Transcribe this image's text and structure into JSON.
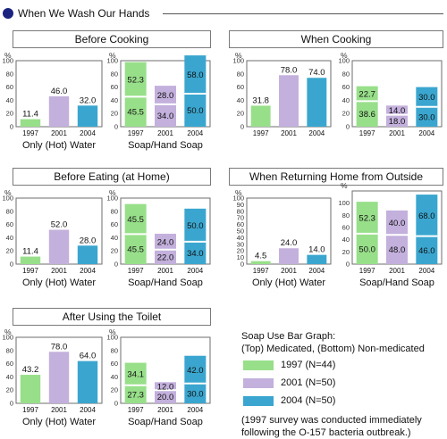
{
  "header": {
    "title": "When We Wash Our Hands"
  },
  "legend": {
    "heading": "Soap Use Bar Graph:",
    "subheading": "(Top) Medicated, (Bottom) Non-medicated",
    "items": [
      {
        "label": "1997  (N=44)",
        "color": "#98df8a"
      },
      {
        "label": "2001  (N=50)",
        "color": "#c3b0dc"
      },
      {
        "label": "2004  (N=50)",
        "color": "#3aa6cf"
      }
    ],
    "note_line1": "(1997 survey was conducted immediately",
    "note_line2": "following the O-157 bacteria outbreak.)"
  },
  "colors": {
    "1997": "#98df8a",
    "2001": "#c3b0dc",
    "2004": "#3aa6cf",
    "frame": "#6e6e6e",
    "axis_text": "#333333"
  },
  "chart_data": [
    {
      "panel": "Before Cooking",
      "water": {
        "type": "bar",
        "categories": [
          "1997",
          "2001",
          "2004"
        ],
        "values": [
          11.4,
          46.0,
          32.0
        ],
        "xlabel": "Only (Hot) Water",
        "ylabel": "%",
        "ylim": [
          0,
          100
        ],
        "yticks": [
          "0",
          "20",
          "40",
          "60",
          "80",
          "100"
        ]
      },
      "soap": {
        "type": "bar",
        "stacked": true,
        "categories": [
          "1997",
          "2001",
          "2004"
        ],
        "series": [
          {
            "name": "Non-medicated",
            "values": [
              45.5,
              34.0,
              50.0
            ]
          },
          {
            "name": "Medicated",
            "values": [
              52.3,
              28.0,
              58.0
            ]
          }
        ],
        "value_labels": {
          "bottom": [
            "45.5",
            "34.0",
            "50.0"
          ],
          "top": [
            "52.3",
            "28.0",
            "58.0"
          ]
        },
        "xlabel": "Soap/Hand Soap",
        "ylabel": "%",
        "ylim": [
          0,
          100
        ],
        "yticks": [
          "0",
          "20",
          "40",
          "60",
          "80",
          "100"
        ]
      }
    },
    {
      "panel": "When Cooking",
      "water": {
        "type": "bar",
        "categories": [
          "1997",
          "2001",
          "2004"
        ],
        "values": [
          31.8,
          78.0,
          74.0
        ],
        "xlabel": "",
        "ylabel": "%",
        "ylim": [
          0,
          100
        ],
        "yticks": [
          "0",
          "20",
          "40",
          "60",
          "80",
          "100"
        ]
      },
      "soap": {
        "type": "bar",
        "stacked": true,
        "categories": [
          "1997",
          "2001",
          "2004"
        ],
        "series": [
          {
            "name": "Non-medicated",
            "values": [
              38.6,
              18.0,
              30.0
            ]
          },
          {
            "name": "Medicated",
            "values": [
              22.7,
              14.0,
              30.0
            ]
          }
        ],
        "value_labels": {
          "bottom": [
            "38.6",
            "18.0",
            "30.0"
          ],
          "top": [
            "22.7",
            "14.0",
            "30.0"
          ]
        },
        "xlabel": "",
        "ylabel": "%",
        "ylim": [
          0,
          100
        ],
        "yticks": [
          "0",
          "20",
          "40",
          "60",
          "80",
          "100"
        ]
      }
    },
    {
      "panel": "Before Eating (at Home)",
      "water": {
        "type": "bar",
        "categories": [
          "1997",
          "2001",
          "2004"
        ],
        "values": [
          11.4,
          52.0,
          28.0
        ],
        "xlabel": "Only (Hot) Water",
        "ylabel": "%",
        "ylim": [
          0,
          100
        ],
        "yticks": [
          "0",
          "20",
          "40",
          "60",
          "80",
          "100"
        ]
      },
      "soap": {
        "type": "bar",
        "stacked": true,
        "categories": [
          "1997",
          "2001",
          "2004"
        ],
        "series": [
          {
            "name": "Non-medicated",
            "values": [
              45.5,
              22.0,
              34.0
            ]
          },
          {
            "name": "Medicated",
            "values": [
              45.5,
              24.0,
              50.0
            ]
          }
        ],
        "value_labels": {
          "bottom": [
            "45.5",
            "22.0",
            "34.0"
          ],
          "top": [
            "45.5",
            "24.0",
            "50.0"
          ]
        },
        "xlabel": "Soap/Hand Soap",
        "ylabel": "%",
        "ylim": [
          0,
          100
        ],
        "yticks": [
          "0",
          "20",
          "40",
          "60",
          "80",
          "100"
        ]
      }
    },
    {
      "panel": "When Returning Home from Outside",
      "water": {
        "type": "bar",
        "categories": [
          "1997",
          "2001",
          "2004"
        ],
        "values": [
          4.5,
          24.0,
          14.0
        ],
        "xlabel": "Only (Hot) Water",
        "ylabel": "%",
        "ylim": [
          0,
          100
        ],
        "yticks": [
          "0",
          "10",
          "20",
          "30",
          "40",
          "50",
          "60",
          "70",
          "80",
          "90",
          "100"
        ]
      },
      "soap": {
        "type": "bar",
        "stacked": true,
        "categories": [
          "1997",
          "2001",
          "2004"
        ],
        "series": [
          {
            "name": "Non-medicated",
            "values": [
              50.0,
              48.0,
              46.0
            ]
          },
          {
            "name": "Medicated",
            "values": [
              52.3,
              40.0,
              68.0
            ]
          }
        ],
        "value_labels": {
          "bottom": [
            "50.0",
            "48.0",
            "46.0"
          ],
          "top": [
            "52.3",
            "40.0",
            "68.0"
          ]
        },
        "xlabel": "Soap/Hand Soap",
        "ylabel": "%",
        "ylim": [
          0,
          120
        ],
        "yticks": [
          "0",
          "20",
          "40",
          "60",
          "80",
          "100"
        ]
      }
    },
    {
      "panel": "After Using the Toilet",
      "water": {
        "type": "bar",
        "categories": [
          "1997",
          "2001",
          "2004"
        ],
        "values": [
          43.2,
          78.0,
          64.0
        ],
        "xlabel": "Only (Hot) Water",
        "ylabel": "%",
        "ylim": [
          0,
          100
        ],
        "yticks": [
          "0",
          "20",
          "40",
          "60",
          "80",
          "100"
        ]
      },
      "soap": {
        "type": "bar",
        "stacked": true,
        "categories": [
          "1997",
          "2001",
          "2004"
        ],
        "series": [
          {
            "name": "Non-medicated",
            "values": [
              27.3,
              20.0,
              30.0
            ]
          },
          {
            "name": "Medicated",
            "values": [
              34.1,
              12.0,
              42.0
            ]
          }
        ],
        "value_labels": {
          "bottom": [
            "27.3",
            "20.0",
            "30.0"
          ],
          "top": [
            "34.1",
            "12.0",
            "42.0"
          ]
        },
        "xlabel": "Soap/Hand Soap",
        "ylabel": "%",
        "ylim": [
          0,
          100
        ],
        "yticks": [
          "0",
          "20",
          "40",
          "60",
          "80",
          "100"
        ]
      }
    }
  ]
}
